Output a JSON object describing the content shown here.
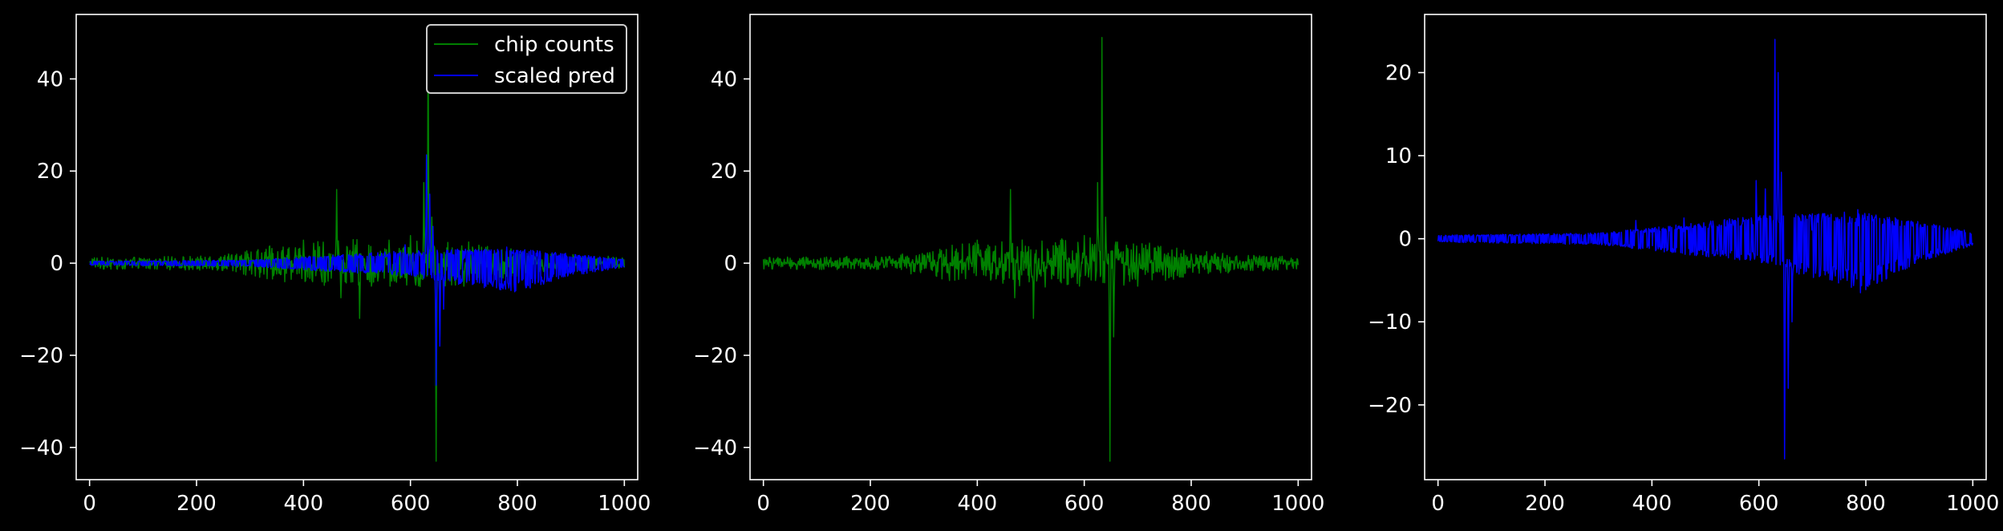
{
  "colors": {
    "background": "#000000",
    "foreground": "#ffffff",
    "chip_counts": "#008000",
    "scaled_pred": "#0000ff"
  },
  "chart_data": [
    {
      "type": "line",
      "title": "",
      "xlabel": "",
      "ylabel": "",
      "xlim": [
        -25,
        1025
      ],
      "ylim": [
        -47,
        54
      ],
      "xticks": [
        0,
        200,
        400,
        600,
        800,
        1000
      ],
      "yticks": [
        -40,
        -20,
        0,
        20,
        40
      ],
      "grid": false,
      "legend": "top-right",
      "series": [
        {
          "name": "chip counts",
          "color": "#008000",
          "peaks": [
            {
              "x": 160,
              "y": 1.0
            },
            {
              "x": 260,
              "y": 2.0
            },
            {
              "x": 330,
              "y": 3.0
            },
            {
              "x": 400,
              "y": 5.0
            },
            {
              "x": 462,
              "y": 16.0
            },
            {
              "x": 470,
              "y": -7.5
            },
            {
              "x": 505,
              "y": -12.0
            },
            {
              "x": 560,
              "y": 5.0
            },
            {
              "x": 600,
              "y": 6.0
            },
            {
              "x": 625,
              "y": 17.5
            },
            {
              "x": 633,
              "y": 49.0
            },
            {
              "x": 640,
              "y": 10.0
            },
            {
              "x": 648,
              "y": -43.0
            },
            {
              "x": 655,
              "y": -16.0
            },
            {
              "x": 700,
              "y": -5.0
            },
            {
              "x": 750,
              "y": 2.0
            },
            {
              "x": 800,
              "y": 2.0
            },
            {
              "x": 900,
              "y": -1.5
            },
            {
              "x": 970,
              "y": 1.5
            }
          ],
          "noise_envelope": [
            [
              0,
              0.8
            ],
            [
              250,
              1.0
            ],
            [
              320,
              2.2
            ],
            [
              420,
              3.0
            ],
            [
              600,
              3.5
            ],
            [
              700,
              3.0
            ],
            [
              800,
              1.8
            ],
            [
              900,
              1.2
            ],
            [
              1000,
              0.8
            ]
          ]
        },
        {
          "name": "scaled pred",
          "color": "#0000ff",
          "peaks": [
            {
              "x": 630,
              "y": 23.5
            },
            {
              "x": 636,
              "y": 15.0
            },
            {
              "x": 642,
              "y": 8.0
            },
            {
              "x": 648,
              "y": -26.5
            },
            {
              "x": 655,
              "y": -18.0
            },
            {
              "x": 662,
              "y": -10.0
            },
            {
              "x": 590,
              "y": 4.0
            },
            {
              "x": 700,
              "y": 2.5
            },
            {
              "x": 780,
              "y": 3.5
            }
          ],
          "upper_envelope": [
            [
              0,
              0.3
            ],
            [
              300,
              0.5
            ],
            [
              450,
              1.2
            ],
            [
              600,
              2.0
            ],
            [
              700,
              2.2
            ],
            [
              800,
              2.2
            ],
            [
              900,
              1.5
            ],
            [
              1000,
              0.6
            ]
          ],
          "lower_envelope": [
            [
              0,
              -0.3
            ],
            [
              300,
              -0.5
            ],
            [
              450,
              -1.3
            ],
            [
              600,
              -2.0
            ],
            [
              700,
              -3.5
            ],
            [
              800,
              -4.5
            ],
            [
              900,
              -2.0
            ],
            [
              1000,
              -0.6
            ]
          ]
        }
      ]
    },
    {
      "type": "line",
      "title": "",
      "xlabel": "",
      "ylabel": "",
      "xlim": [
        -25,
        1025
      ],
      "ylim": [
        -47,
        54
      ],
      "xticks": [
        0,
        200,
        400,
        600,
        800,
        1000
      ],
      "yticks": [
        -40,
        -20,
        0,
        20,
        40
      ],
      "grid": false,
      "legend": "none",
      "series": [
        {
          "color": "#008000",
          "peaks": [
            {
              "x": 160,
              "y": 1.0
            },
            {
              "x": 260,
              "y": 2.0
            },
            {
              "x": 330,
              "y": 3.0
            },
            {
              "x": 400,
              "y": 5.0
            },
            {
              "x": 462,
              "y": 16.0
            },
            {
              "x": 470,
              "y": -7.5
            },
            {
              "x": 505,
              "y": -12.0
            },
            {
              "x": 560,
              "y": 5.0
            },
            {
              "x": 600,
              "y": 6.0
            },
            {
              "x": 625,
              "y": 17.5
            },
            {
              "x": 633,
              "y": 49.0
            },
            {
              "x": 640,
              "y": 10.0
            },
            {
              "x": 648,
              "y": -43.0
            },
            {
              "x": 655,
              "y": -16.0
            },
            {
              "x": 700,
              "y": -5.0
            },
            {
              "x": 750,
              "y": 2.0
            },
            {
              "x": 800,
              "y": 2.0
            },
            {
              "x": 900,
              "y": -1.5
            },
            {
              "x": 970,
              "y": 1.5
            }
          ],
          "noise_envelope": [
            [
              0,
              0.8
            ],
            [
              250,
              1.0
            ],
            [
              320,
              2.2
            ],
            [
              420,
              3.0
            ],
            [
              600,
              3.5
            ],
            [
              700,
              3.0
            ],
            [
              800,
              1.8
            ],
            [
              900,
              1.2
            ],
            [
              1000,
              0.8
            ]
          ]
        }
      ]
    },
    {
      "type": "line",
      "title": "",
      "xlabel": "",
      "ylabel": "",
      "xlim": [
        -25,
        1025
      ],
      "ylim": [
        -29,
        27
      ],
      "xticks": [
        0,
        200,
        400,
        600,
        800,
        1000
      ],
      "yticks": [
        -20,
        -10,
        0,
        10,
        20
      ],
      "grid": false,
      "legend": "none",
      "series": [
        {
          "color": "#0000ff",
          "peaks": [
            {
              "x": 370,
              "y": 2.2
            },
            {
              "x": 460,
              "y": 2.5
            },
            {
              "x": 595,
              "y": 7.0
            },
            {
              "x": 612,
              "y": 6.0
            },
            {
              "x": 630,
              "y": 24.0
            },
            {
              "x": 636,
              "y": 20.0
            },
            {
              "x": 642,
              "y": 8.0
            },
            {
              "x": 648,
              "y": -26.5
            },
            {
              "x": 655,
              "y": -18.0
            },
            {
              "x": 662,
              "y": -10.0
            },
            {
              "x": 700,
              "y": 3.0
            },
            {
              "x": 760,
              "y": 3.2
            },
            {
              "x": 785,
              "y": 3.5
            },
            {
              "x": 790,
              "y": -6.5
            }
          ],
          "upper_envelope": [
            [
              0,
              0.3
            ],
            [
              300,
              0.5
            ],
            [
              450,
              1.2
            ],
            [
              600,
              2.0
            ],
            [
              700,
              2.2
            ],
            [
              800,
              2.2
            ],
            [
              900,
              1.5
            ],
            [
              1000,
              0.6
            ]
          ],
          "lower_envelope": [
            [
              0,
              -0.3
            ],
            [
              300,
              -0.5
            ],
            [
              450,
              -1.3
            ],
            [
              600,
              -2.0
            ],
            [
              700,
              -3.5
            ],
            [
              800,
              -4.5
            ],
            [
              900,
              -2.0
            ],
            [
              1000,
              -0.6
            ]
          ]
        }
      ]
    }
  ]
}
